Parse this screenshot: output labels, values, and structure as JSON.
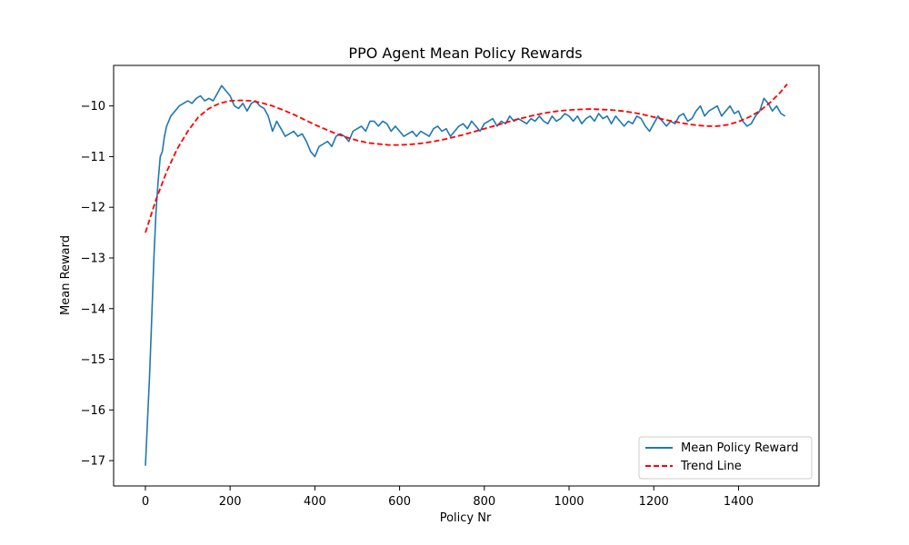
{
  "chart_data": {
    "type": "line",
    "title": "PPO Agent Mean Policy Rewards",
    "xlabel": "Policy Nr",
    "ylabel": "Mean Reward",
    "xlim": [
      -75,
      1590
    ],
    "ylim": [
      -17.5,
      -9.2
    ],
    "xticks": [
      0,
      200,
      400,
      600,
      800,
      1000,
      1200,
      1400
    ],
    "yticks": [
      -17,
      -16,
      -15,
      -14,
      -13,
      -12,
      -11,
      -10
    ],
    "grid": false,
    "legend_position": "lower-right",
    "series": [
      {
        "name": "Mean Policy Reward",
        "color": "#1f77b4",
        "style": "solid",
        "x": [
          0,
          5,
          10,
          15,
          20,
          25,
          30,
          35,
          40,
          45,
          50,
          55,
          60,
          70,
          80,
          90,
          100,
          110,
          120,
          130,
          140,
          150,
          160,
          170,
          180,
          190,
          200,
          210,
          220,
          230,
          240,
          250,
          260,
          270,
          280,
          290,
          300,
          310,
          320,
          330,
          340,
          350,
          360,
          370,
          380,
          390,
          400,
          410,
          420,
          430,
          440,
          450,
          460,
          470,
          480,
          490,
          500,
          510,
          520,
          530,
          540,
          550,
          560,
          570,
          580,
          590,
          600,
          610,
          620,
          630,
          640,
          650,
          660,
          670,
          680,
          690,
          700,
          710,
          720,
          730,
          740,
          750,
          760,
          770,
          780,
          790,
          800,
          810,
          820,
          830,
          840,
          850,
          860,
          870,
          880,
          890,
          900,
          910,
          920,
          930,
          940,
          950,
          960,
          970,
          980,
          990,
          1000,
          1010,
          1020,
          1030,
          1040,
          1050,
          1060,
          1070,
          1080,
          1090,
          1100,
          1110,
          1120,
          1130,
          1140,
          1150,
          1160,
          1170,
          1180,
          1190,
          1200,
          1210,
          1220,
          1230,
          1240,
          1250,
          1260,
          1270,
          1280,
          1290,
          1300,
          1310,
          1320,
          1330,
          1340,
          1350,
          1360,
          1370,
          1380,
          1390,
          1400,
          1410,
          1420,
          1430,
          1440,
          1450,
          1460,
          1470,
          1480,
          1490,
          1500,
          1510
        ],
        "y": [
          -17.1,
          -16.2,
          -15.3,
          -14.2,
          -13.0,
          -12.1,
          -11.5,
          -11.0,
          -10.9,
          -10.6,
          -10.4,
          -10.3,
          -10.2,
          -10.1,
          -10.0,
          -9.95,
          -9.9,
          -9.95,
          -9.85,
          -9.8,
          -9.9,
          -9.85,
          -9.9,
          -9.75,
          -9.6,
          -9.7,
          -9.8,
          -10.0,
          -10.05,
          -9.95,
          -10.1,
          -9.95,
          -9.9,
          -10.0,
          -10.05,
          -10.2,
          -10.5,
          -10.3,
          -10.45,
          -10.6,
          -10.55,
          -10.5,
          -10.6,
          -10.55,
          -10.7,
          -10.9,
          -11.0,
          -10.8,
          -10.75,
          -10.7,
          -10.8,
          -10.6,
          -10.55,
          -10.6,
          -10.7,
          -10.5,
          -10.45,
          -10.4,
          -10.5,
          -10.3,
          -10.3,
          -10.4,
          -10.3,
          -10.35,
          -10.5,
          -10.4,
          -10.5,
          -10.6,
          -10.55,
          -10.5,
          -10.6,
          -10.5,
          -10.55,
          -10.6,
          -10.45,
          -10.4,
          -10.5,
          -10.45,
          -10.6,
          -10.5,
          -10.4,
          -10.35,
          -10.45,
          -10.3,
          -10.4,
          -10.5,
          -10.35,
          -10.3,
          -10.25,
          -10.4,
          -10.3,
          -10.35,
          -10.2,
          -10.3,
          -10.25,
          -10.3,
          -10.35,
          -10.25,
          -10.3,
          -10.2,
          -10.3,
          -10.35,
          -10.2,
          -10.3,
          -10.25,
          -10.15,
          -10.2,
          -10.3,
          -10.2,
          -10.35,
          -10.25,
          -10.2,
          -10.3,
          -10.15,
          -10.25,
          -10.2,
          -10.35,
          -10.2,
          -10.3,
          -10.4,
          -10.3,
          -10.35,
          -10.2,
          -10.25,
          -10.4,
          -10.5,
          -10.35,
          -10.2,
          -10.3,
          -10.4,
          -10.3,
          -10.35,
          -10.2,
          -10.15,
          -10.3,
          -10.25,
          -10.1,
          -10.0,
          -10.2,
          -10.1,
          -10.05,
          -10.0,
          -10.2,
          -10.1,
          -10.0,
          -10.15,
          -10.1,
          -10.3,
          -10.4,
          -10.35,
          -10.2,
          -10.1,
          -9.85,
          -9.95,
          -10.1,
          -10.0,
          -10.15,
          -10.2
        ]
      },
      {
        "name": "Trend Line",
        "color": "#ff0000",
        "style": "dashed",
        "x": [
          0,
          25,
          50,
          75,
          100,
          125,
          150,
          175,
          200,
          225,
          250,
          275,
          300,
          325,
          350,
          375,
          400,
          425,
          450,
          475,
          500,
          525,
          550,
          575,
          600,
          625,
          650,
          675,
          700,
          725,
          750,
          775,
          800,
          825,
          850,
          875,
          900,
          925,
          950,
          975,
          1000,
          1025,
          1050,
          1075,
          1100,
          1125,
          1150,
          1175,
          1200,
          1225,
          1250,
          1275,
          1300,
          1325,
          1350,
          1375,
          1400,
          1425,
          1450,
          1475,
          1500,
          1515
        ],
        "y": [
          -12.5,
          -11.85,
          -11.3,
          -10.85,
          -10.5,
          -10.22,
          -10.05,
          -9.95,
          -9.9,
          -9.89,
          -9.9,
          -9.94,
          -10.0,
          -10.08,
          -10.17,
          -10.27,
          -10.37,
          -10.46,
          -10.55,
          -10.62,
          -10.68,
          -10.73,
          -10.75,
          -10.77,
          -10.77,
          -10.76,
          -10.74,
          -10.71,
          -10.67,
          -10.62,
          -10.57,
          -10.51,
          -10.45,
          -10.39,
          -10.33,
          -10.27,
          -10.22,
          -10.17,
          -10.13,
          -10.1,
          -10.08,
          -10.07,
          -10.06,
          -10.07,
          -10.08,
          -10.1,
          -10.13,
          -10.17,
          -10.22,
          -10.27,
          -10.31,
          -10.35,
          -10.38,
          -10.4,
          -10.4,
          -10.37,
          -10.31,
          -10.22,
          -10.1,
          -9.93,
          -9.72,
          -9.57
        ]
      }
    ]
  }
}
